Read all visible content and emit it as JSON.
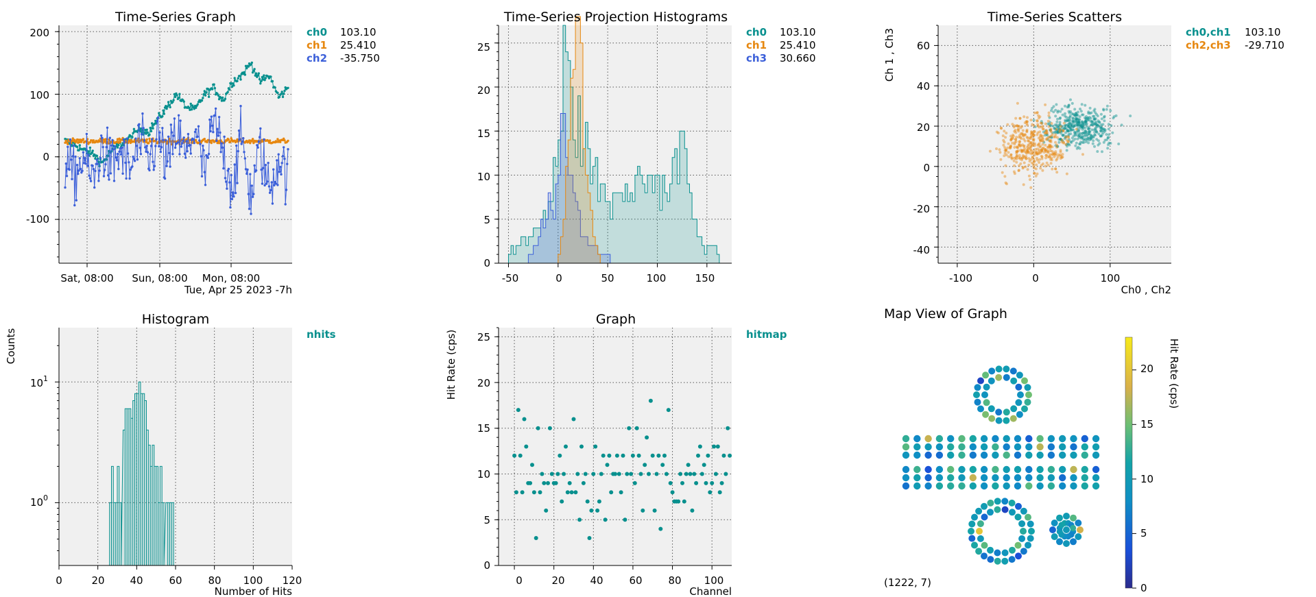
{
  "colors": {
    "teal": "#08908e",
    "orange": "#e6870f",
    "blue": "#3b5fd9",
    "plot_bg": "#f0f0f0",
    "grid": "#555555"
  },
  "panels": {
    "ts_graph": {
      "title": "Time-Series Graph",
      "xticks": [
        "Sat, 08:00",
        "Sun, 08:00",
        "Mon, 08:00"
      ],
      "xnote": "Tue, Apr 25 2023 -7h",
      "yticks": [
        "200",
        "100",
        "0",
        "-100"
      ],
      "legend": [
        {
          "name": "ch0",
          "value": "103.10",
          "color": "teal"
        },
        {
          "name": "ch1",
          "value": "25.410",
          "color": "orange"
        },
        {
          "name": "ch2",
          "value": "-35.750",
          "color": "blue"
        }
      ]
    },
    "ts_hist": {
      "title": "Time-Series Projection Histograms",
      "xticks": [
        "-50",
        "0",
        "50",
        "100",
        "150"
      ],
      "yticks": [
        "25",
        "20",
        "15",
        "10",
        "5",
        "0"
      ],
      "legend": [
        {
          "name": "ch0",
          "value": "103.10",
          "color": "teal"
        },
        {
          "name": "ch1",
          "value": "25.410",
          "color": "orange"
        },
        {
          "name": "ch3",
          "value": "30.660",
          "color": "blue"
        }
      ]
    },
    "ts_scatter": {
      "title": "Time-Series Scatters",
      "ylabel": "Ch 1 , Ch3",
      "xlabel": "Ch0 , Ch2",
      "xticks": [
        "-100",
        "0",
        "100"
      ],
      "yticks": [
        "60",
        "40",
        "20",
        "0",
        "-20",
        "-40"
      ],
      "legend": [
        {
          "name": "ch0,ch1",
          "value": "103.10",
          "color": "teal"
        },
        {
          "name": "ch2,ch3",
          "value": "-29.710",
          "color": "orange"
        }
      ]
    },
    "histogram": {
      "title": "Histogram",
      "ylabel": "Counts",
      "xlabel": "Number of Hits",
      "xticks": [
        "0",
        "20",
        "40",
        "60",
        "80",
        "100",
        "120"
      ],
      "ytick_base": "10",
      "yticks_exp": [
        "1",
        "0"
      ],
      "legend": [
        {
          "name": "nhits",
          "value": "",
          "color": "teal"
        }
      ]
    },
    "graph": {
      "title": "Graph",
      "ylabel": "Hit Rate (cps)",
      "xlabel": "Channel",
      "xticks": [
        "0",
        "20",
        "40",
        "60",
        "80",
        "100"
      ],
      "yticks": [
        "25",
        "20",
        "15",
        "10",
        "5",
        "0"
      ],
      "legend": [
        {
          "name": "hitmap",
          "value": "",
          "color": "teal"
        }
      ]
    },
    "mapview": {
      "title": "Map View of Graph",
      "coord": "(1222, 7)",
      "colorbar_label": "Hit Rate (cps)",
      "colorbar_ticks": [
        "20",
        "15",
        "10",
        "5",
        "0"
      ]
    }
  },
  "chart_data": [
    {
      "type": "line",
      "title": "Time-Series Graph",
      "x": "time (Sat 08:00 → Tue)",
      "ylim": [
        -170,
        210
      ],
      "series": [
        {
          "name": "ch0",
          "approx_values": [
            25,
            20,
            10,
            5,
            -10,
            10,
            20,
            30,
            45,
            40,
            60,
            80,
            100,
            80,
            75,
            100,
            110,
            90,
            120,
            130,
            150,
            120,
            130,
            95,
            110
          ]
        },
        {
          "name": "ch1",
          "approx_values": [
            25,
            22,
            26,
            24,
            25,
            23,
            27,
            25,
            24,
            26,
            25,
            24,
            25,
            26,
            24,
            25,
            25,
            24,
            26,
            25,
            24,
            25,
            26,
            24,
            25
          ]
        },
        {
          "name": "ch2",
          "approx_values": [
            -10,
            -40,
            0,
            -50,
            20,
            -20,
            10,
            -30,
            30,
            -10,
            40,
            -20,
            50,
            0,
            60,
            -40,
            70,
            10,
            -60,
            40,
            -80,
            20,
            -70,
            0,
            -40
          ]
        }
      ]
    },
    {
      "type": "area",
      "title": "Time-Series Projection Histograms",
      "xlim": [
        -60,
        175
      ],
      "ylim": [
        0,
        27
      ],
      "series": [
        {
          "name": "ch0",
          "x": [
            -50,
            -40,
            -30,
            -20,
            -10,
            0,
            5,
            10,
            20,
            30,
            40,
            50,
            60,
            70,
            80,
            90,
            100,
            110,
            120,
            125,
            130,
            140,
            150,
            160
          ],
          "values": [
            1,
            2,
            3,
            5,
            8,
            14,
            24,
            18,
            15,
            12,
            9,
            7,
            7,
            8,
            9,
            10,
            9,
            8,
            12,
            15,
            8,
            3,
            2,
            1
          ]
        },
        {
          "name": "ch1",
          "x": [
            0,
            5,
            10,
            15,
            20,
            25,
            30,
            35,
            40
          ],
          "values": [
            1,
            5,
            15,
            22,
            24,
            17,
            8,
            3,
            1
          ]
        },
        {
          "name": "ch3",
          "x": [
            -30,
            -20,
            -10,
            0,
            5,
            10,
            15,
            20,
            30,
            40,
            50
          ],
          "values": [
            1,
            3,
            6,
            10,
            15,
            12,
            8,
            5,
            2,
            1,
            1
          ]
        }
      ]
    },
    {
      "type": "scatter",
      "title": "Time-Series Scatters",
      "xlabel": "Ch0 , Ch2",
      "ylabel": "Ch 1 , Ch3",
      "xlim": [
        -125,
        180
      ],
      "ylim": [
        -48,
        70
      ],
      "series": [
        {
          "name": "ch0,ch1",
          "center": [
            60,
            20
          ],
          "spread": [
            45,
            10
          ]
        },
        {
          "name": "ch2,ch3",
          "center": [
            0,
            10
          ],
          "spread": [
            45,
            15
          ]
        }
      ]
    },
    {
      "type": "bar",
      "title": "Histogram",
      "xlabel": "Number of Hits",
      "ylabel": "Counts",
      "yscale": "log",
      "xlim": [
        0,
        120
      ],
      "x": [
        26,
        27,
        28,
        29,
        30,
        31,
        33,
        34,
        35,
        36,
        37,
        38,
        39,
        40,
        41,
        42,
        43,
        44,
        45,
        46,
        47,
        48,
        49,
        50,
        51,
        52,
        53,
        55,
        56,
        57,
        58
      ],
      "values": [
        1,
        2,
        1,
        1,
        2,
        1,
        4,
        6,
        6,
        6,
        5,
        7,
        8,
        8,
        10,
        8,
        8,
        7,
        4,
        3,
        2,
        3,
        2,
        2,
        1,
        2,
        1,
        1,
        1,
        1,
        1
      ]
    },
    {
      "type": "scatter",
      "title": "Graph",
      "xlabel": "Channel",
      "ylabel": "Hit Rate (cps)",
      "xlim": [
        -8,
        110
      ],
      "ylim": [
        0,
        26
      ],
      "x": [
        0,
        1,
        2,
        3,
        4,
        5,
        6,
        7,
        8,
        9,
        10,
        11,
        12,
        13,
        14,
        15,
        16,
        17,
        18,
        19,
        20,
        21,
        22,
        23,
        24,
        25,
        26,
        27,
        28,
        29,
        30,
        31,
        32,
        33,
        34,
        35,
        36,
        37,
        38,
        39,
        40,
        41,
        42,
        43,
        44,
        45,
        46,
        47,
        48,
        49,
        50,
        51,
        52,
        53,
        54,
        55,
        56,
        57,
        58,
        59,
        60,
        61,
        62,
        63,
        64,
        65,
        66,
        67,
        68,
        69,
        70,
        71,
        72,
        73,
        74,
        75,
        76,
        77,
        78,
        79,
        80,
        81,
        82,
        83,
        84,
        85,
        86,
        87,
        88,
        89,
        90,
        91,
        92,
        93,
        94,
        95,
        96,
        97,
        98,
        99,
        100,
        101,
        102,
        103,
        104,
        105,
        106,
        107,
        108,
        109
      ],
      "values": [
        12,
        8,
        17,
        12,
        8,
        16,
        13,
        9,
        9,
        11,
        8,
        3,
        15,
        8,
        10,
        9,
        6,
        9,
        15,
        10,
        9,
        9,
        10,
        12,
        7,
        10,
        13,
        8,
        9,
        8,
        16,
        8,
        10,
        5,
        13,
        9,
        10,
        7,
        3,
        6,
        10,
        13,
        6,
        7,
        10,
        12,
        5,
        11,
        12,
        8,
        10,
        10,
        12,
        10,
        8,
        12,
        5,
        10,
        15,
        10,
        12,
        9,
        15,
        12,
        10,
        6,
        11,
        14,
        10,
        18,
        12,
        6,
        10,
        12,
        4,
        11,
        12,
        10,
        17,
        9,
        8,
        7,
        7,
        7,
        10,
        9,
        7,
        10,
        11,
        10,
        6,
        10,
        9,
        12,
        13,
        10,
        11,
        9,
        12,
        8,
        9,
        13,
        10,
        13,
        8,
        9,
        12,
        10,
        15,
        12
      ]
    },
    {
      "type": "heatmap",
      "title": "Map View of Graph",
      "colorbar": "Hit Rate (cps)",
      "range": [
        0,
        23
      ],
      "regions": [
        "upper ring",
        "upper strip (3 rows)",
        "lower strip (3 rows)",
        "lower ring",
        "small flower"
      ]
    }
  ]
}
